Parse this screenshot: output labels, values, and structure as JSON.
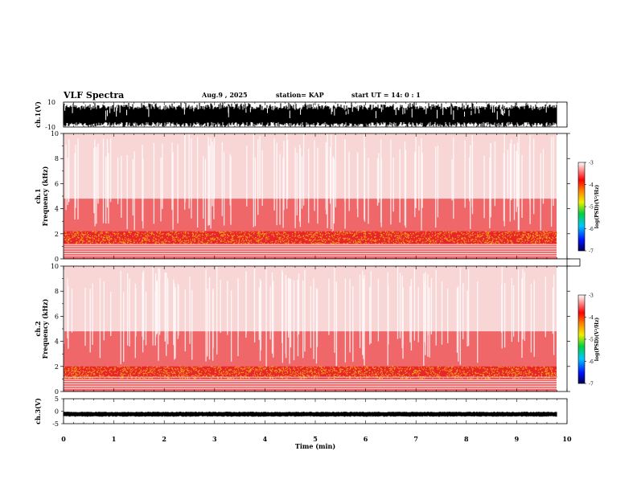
{
  "header": {
    "title": "VLF Spectra",
    "date": "Aug.9 , 2025",
    "station": "station= KAP",
    "start_ut": "start UT = 14: 0 : 1"
  },
  "chart_data": [
    {
      "type": "line",
      "panel": "ch1-waveform",
      "ylabel": "ch.1(V)",
      "ylim": [
        -10,
        10
      ],
      "yticks": [
        "10",
        "-10"
      ],
      "xlim": [
        0,
        10
      ],
      "note_visible": "dense saturated waveform spanning roughly -10 to 10 V"
    },
    {
      "type": "heatmap",
      "panel": "ch1-spectrogram",
      "ylabel": "ch.1 Frequency (kHz)",
      "ylim": [
        0,
        10
      ],
      "yticks": [
        "0",
        "2",
        "4",
        "6",
        "8",
        "10"
      ],
      "xlim": [
        0,
        10
      ],
      "colorbar": {
        "label": "log(PSD)(V²/Hz)",
        "range": [
          -7,
          -3
        ],
        "ticks": [
          "-3",
          "-4",
          "-5",
          "-6",
          "-7"
        ]
      },
      "band_kHz": [
        1.2,
        2.2
      ],
      "colors": {
        "band": "#f3a31a",
        "background": "#e8262a",
        "sparse": "#f4b4b4"
      }
    },
    {
      "type": "heatmap",
      "panel": "ch2-spectrogram",
      "ylabel": "ch.2 Frequency (kHz)",
      "ylim": [
        0,
        10
      ],
      "yticks": [
        "0",
        "2",
        "4",
        "6",
        "8",
        "10"
      ],
      "xlim": [
        0,
        10
      ],
      "colorbar": {
        "label": "log(PSD)(V²/Hz)",
        "range": [
          -7,
          -3
        ],
        "ticks": [
          "-3",
          "-4",
          "-5",
          "-6",
          "-7"
        ]
      },
      "band_kHz": [
        1.0,
        2.0
      ],
      "colors": {
        "band": "#f3a31a",
        "background": "#e8262a",
        "sparse": "#f4b4b4"
      }
    },
    {
      "type": "line",
      "panel": "ch3-waveform",
      "ylabel": "ch.3(V)",
      "ylim": [
        -5,
        5
      ],
      "yticks": [
        "5",
        "0",
        "-5"
      ],
      "xlim": [
        0,
        10
      ],
      "xlabel": "Time (min)",
      "xticks": [
        "0",
        "1",
        "2",
        "3",
        "4",
        "5",
        "6",
        "7",
        "8",
        "9",
        "10"
      ],
      "level_V": -1.2
    }
  ]
}
